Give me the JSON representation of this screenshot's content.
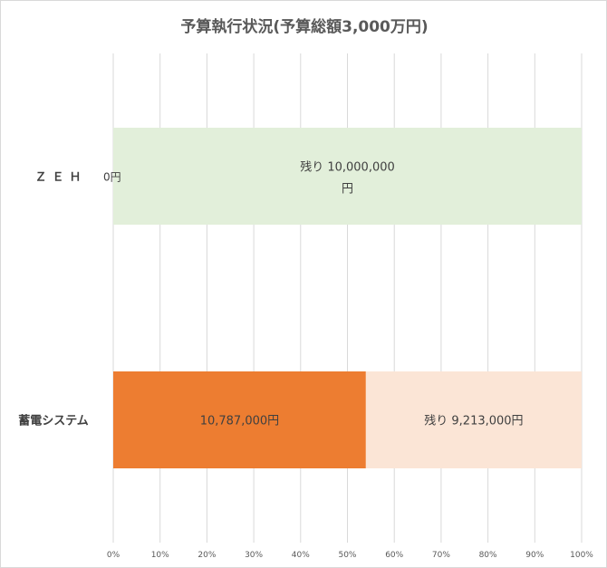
{
  "chart_data": {
    "type": "bar",
    "orientation": "horizontal",
    "stacked": "percent",
    "title": "予算執行状況(予算総額3,000万円)",
    "categories": [
      "ＺＥＨ",
      "蓄電システム"
    ],
    "series": [
      {
        "key": "used",
        "values": [
          0,
          10787000
        ],
        "labels": [
          "0円",
          "10,787,000円"
        ],
        "colors": [
          "#a9d08e",
          "#ed7d31"
        ]
      },
      {
        "key": "remaining",
        "values": [
          10000000,
          9213000
        ],
        "labels": [
          "残り 10,000,000円",
          "残り 9,213,000円"
        ],
        "colors": [
          "#e2efda",
          "#fbe5d6"
        ]
      }
    ],
    "xlim": [
      0,
      100
    ],
    "x_ticks": [
      "0%",
      "10%",
      "20%",
      "30%",
      "40%",
      "50%",
      "60%",
      "70%",
      "80%",
      "90%",
      "100%"
    ],
    "grid": true,
    "legend": "none"
  }
}
